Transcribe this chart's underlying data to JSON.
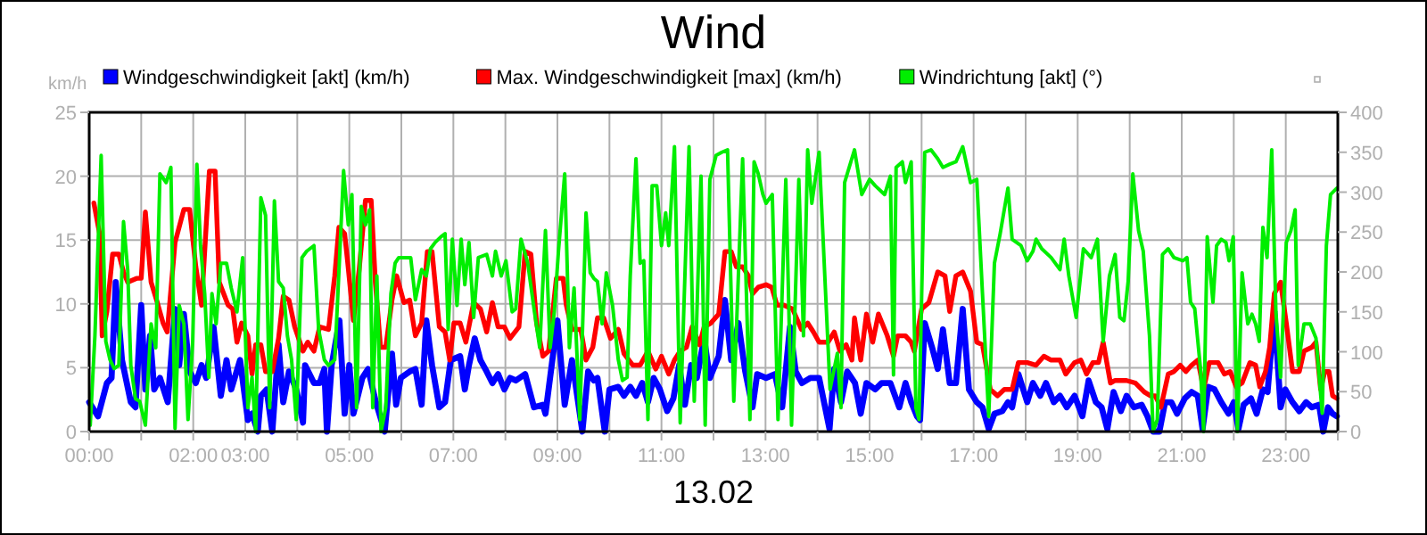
{
  "chart_data": {
    "type": "line",
    "title": "Wind",
    "xlabel": "13.02",
    "ylabel": "km/h",
    "xlim": [
      0,
      24
    ],
    "xticks": [
      {
        "value": 0,
        "label": "00:00"
      },
      {
        "value": 1,
        "label": null
      },
      {
        "value": 2,
        "label": "02:00"
      },
      {
        "value": 3,
        "label": "03:00"
      },
      {
        "value": 4,
        "label": null
      },
      {
        "value": 5,
        "label": "05:00"
      },
      {
        "value": 6,
        "label": null
      },
      {
        "value": 7,
        "label": "07:00"
      },
      {
        "value": 8,
        "label": null
      },
      {
        "value": 9,
        "label": "09:00"
      },
      {
        "value": 10,
        "label": null
      },
      {
        "value": 11,
        "label": "11:00"
      },
      {
        "value": 12,
        "label": null
      },
      {
        "value": 13,
        "label": "13:00"
      },
      {
        "value": 14,
        "label": null
      },
      {
        "value": 15,
        "label": "15:00"
      },
      {
        "value": 16,
        "label": null
      },
      {
        "value": 17,
        "label": "17:00"
      },
      {
        "value": 18,
        "label": null
      },
      {
        "value": 19,
        "label": "19:00"
      },
      {
        "value": 20,
        "label": null
      },
      {
        "value": 21,
        "label": "21:00"
      },
      {
        "value": 22,
        "label": null
      },
      {
        "value": 23,
        "label": "23:00"
      },
      {
        "value": 24,
        "label": null
      }
    ],
    "ylim": [
      0,
      25
    ],
    "yticks": [
      0,
      5,
      10,
      15,
      20,
      25
    ],
    "y2lim": [
      0,
      400
    ],
    "y2ticks": [
      0,
      50,
      100,
      150,
      200,
      250,
      300,
      350,
      400
    ],
    "grid": true,
    "legend": "top",
    "marker": "none",
    "line_style": "solid",
    "series": [
      {
        "name": "Windgeschwindigkeit [akt] (km/h)",
        "color": "#0000ff",
        "x": [
          0,
          0.17,
          0.34,
          0.43,
          0.51,
          0.63,
          0.8,
          0.89,
          1.0,
          1.08,
          1.17,
          1.25,
          1.36,
          1.51,
          1.65,
          1.73,
          1.82,
          1.93,
          2.05,
          2.16,
          2.25,
          2.39,
          2.53,
          2.64,
          2.73,
          2.9,
          3.05,
          3.13,
          3.24,
          3.3,
          3.41,
          3.52,
          3.64,
          3.73,
          3.84,
          3.98,
          4.11,
          4.15,
          4.32,
          4.43,
          4.52,
          4.57,
          4.66,
          4.81,
          4.91,
          5.0,
          5.08,
          5.25,
          5.36,
          5.51,
          5.68,
          5.82,
          5.9,
          5.99,
          6.16,
          6.27,
          6.39,
          6.48,
          6.59,
          6.73,
          6.84,
          6.95,
          7.13,
          7.22,
          7.3,
          7.41,
          7.52,
          7.64,
          7.75,
          7.86,
          7.98,
          8.09,
          8.2,
          8.38,
          8.55,
          8.72,
          8.77,
          8.89,
          9.0,
          9.14,
          9.28,
          9.48,
          9.59,
          9.7,
          9.77,
          9.91,
          10.0,
          10.17,
          10.28,
          10.4,
          10.51,
          10.63,
          10.74,
          10.85,
          10.97,
          11.11,
          11.23,
          11.34,
          11.45,
          11.57,
          11.68,
          11.82,
          11.93,
          12.1,
          12.22,
          12.34,
          12.48,
          12.61,
          12.75,
          12.84,
          13.01,
          13.18,
          13.32,
          13.47,
          13.58,
          13.7,
          13.86,
          14.03,
          14.23,
          14.32,
          14.45,
          14.57,
          14.72,
          14.83,
          14.94,
          15.11,
          15.23,
          15.4,
          15.57,
          15.69,
          15.8,
          15.91,
          15.97,
          16.06,
          16.2,
          16.31,
          16.41,
          16.54,
          16.66,
          16.79,
          16.91,
          17.06,
          17.17,
          17.29,
          17.4,
          17.55,
          17.66,
          17.74,
          17.86,
          18.03,
          18.14,
          18.28,
          18.39,
          18.54,
          18.66,
          18.79,
          18.94,
          19.09,
          19.21,
          19.35,
          19.46,
          19.57,
          19.69,
          19.83,
          19.94,
          20.08,
          20.23,
          20.34,
          20.45,
          20.57,
          20.68,
          20.8,
          20.91,
          21.06,
          21.19,
          21.31,
          21.4,
          21.51,
          21.63,
          21.76,
          21.9,
          22.0,
          22.09,
          22.19,
          22.33,
          22.44,
          22.56,
          22.65,
          22.78,
          22.9,
          22.99,
          23.13,
          23.26,
          23.39,
          23.5,
          23.64,
          23.72,
          23.81,
          23.9,
          23.98
        ],
        "values": [
          2.3,
          1.2,
          3.8,
          4.2,
          11.7,
          5.6,
          2.3,
          1.9,
          9.9,
          3.3,
          7.5,
          3.3,
          4.2,
          2.3,
          9.6,
          5.2,
          9.2,
          4.7,
          3.8,
          5.2,
          4.2,
          8.2,
          2.8,
          5.6,
          3.3,
          5.6,
          0.9,
          1.4,
          0,
          2.8,
          3.3,
          0,
          6.8,
          2.3,
          4.7,
          3.3,
          0.7,
          5.2,
          3.8,
          3.8,
          4.9,
          0,
          5.2,
          8.7,
          1.4,
          5.2,
          1.4,
          4.2,
          4.9,
          2.3,
          0,
          6.1,
          2.1,
          4.2,
          4.7,
          4.9,
          2.1,
          8.7,
          5.2,
          1.9,
          2.3,
          5.6,
          5.9,
          3.3,
          5.2,
          7.3,
          5.6,
          4.7,
          3.8,
          4.5,
          3.3,
          4.2,
          4.0,
          4.5,
          1.9,
          2.1,
          1.4,
          5.2,
          8.7,
          2.1,
          5.6,
          0,
          4.7,
          4.0,
          4.2,
          0,
          3.3,
          3.5,
          2.8,
          3.5,
          2.8,
          3.8,
          2.3,
          4.2,
          3.3,
          1.6,
          2.6,
          5.2,
          2.1,
          5.2,
          4.2,
          7.3,
          4.2,
          5.9,
          10.3,
          5.6,
          8.5,
          4.7,
          1.9,
          4.5,
          4.2,
          4.5,
          1.9,
          8.2,
          4.7,
          3.8,
          4.2,
          4.2,
          0.2,
          4.9,
          2.3,
          4.7,
          3.8,
          1.4,
          3.8,
          3.3,
          3.8,
          3.8,
          1.9,
          3.8,
          2.3,
          1.2,
          0.9,
          8.5,
          6.6,
          4.9,
          8.0,
          3.8,
          3.8,
          9.6,
          3.3,
          2.3,
          1.9,
          0.2,
          1.4,
          1.6,
          2.3,
          1.9,
          4.5,
          2.3,
          3.8,
          2.8,
          3.8,
          2.3,
          2.8,
          1.9,
          2.8,
          1.2,
          4.0,
          2.3,
          1.9,
          0.2,
          3.1,
          1.6,
          2.8,
          1.9,
          2.1,
          1.2,
          0,
          0,
          2.3,
          2.3,
          1.4,
          2.6,
          3.1,
          2.8,
          0.2,
          3.5,
          3.3,
          2.3,
          1.4,
          2.3,
          0.2,
          2.1,
          2.6,
          1.4,
          3.3,
          3.1,
          9.4,
          1.9,
          3.3,
          2.3,
          1.6,
          2.3,
          1.9,
          2.1,
          0,
          1.9,
          1.4,
          1.2
        ]
      },
      {
        "name": "Max. Windgeschwindigkeit [max] (km/h)",
        "color": "#ff0000",
        "x": [
          0.09,
          0.2,
          0.25,
          0.34,
          0.45,
          0.57,
          0.66,
          0.74,
          0.91,
          1.0,
          1.08,
          1.19,
          1.31,
          1.42,
          1.5,
          1.65,
          1.82,
          1.93,
          2.05,
          2.16,
          2.31,
          2.42,
          2.5,
          2.67,
          2.76,
          2.84,
          2.93,
          3.05,
          3.13,
          3.2,
          3.3,
          3.39,
          3.52,
          3.64,
          3.73,
          3.84,
          3.95,
          4.11,
          4.2,
          4.32,
          4.43,
          4.6,
          4.72,
          4.8,
          4.91,
          4.97,
          5.08,
          5.19,
          5.31,
          5.42,
          5.5,
          5.6,
          5.7,
          5.82,
          5.91,
          6.05,
          6.16,
          6.27,
          6.39,
          6.5,
          6.59,
          6.73,
          6.84,
          6.93,
          7.01,
          7.13,
          7.24,
          7.39,
          7.52,
          7.64,
          7.75,
          7.86,
          7.98,
          8.09,
          8.26,
          8.38,
          8.49,
          8.6,
          8.72,
          8.83,
          8.98,
          9.11,
          9.17,
          9.28,
          9.45,
          9.55,
          9.68,
          9.77,
          9.89,
          10.02,
          10.17,
          10.28,
          10.45,
          10.59,
          10.74,
          10.89,
          11.0,
          11.14,
          11.25,
          11.36,
          11.48,
          11.59,
          11.73,
          11.82,
          11.95,
          12.1,
          12.22,
          12.34,
          12.44,
          12.56,
          12.67,
          12.75,
          12.86,
          13.01,
          13.12,
          13.22,
          13.35,
          13.52,
          13.69,
          13.81,
          13.92,
          14.03,
          14.2,
          14.32,
          14.43,
          14.55,
          14.66,
          14.71,
          14.83,
          14.94,
          15.06,
          15.17,
          15.34,
          15.46,
          15.54,
          15.69,
          15.8,
          15.86,
          16.0,
          16.14,
          16.31,
          16.45,
          16.54,
          16.66,
          16.79,
          16.94,
          17.06,
          17.17,
          17.32,
          17.46,
          17.59,
          17.74,
          17.86,
          18.03,
          18.2,
          18.35,
          18.49,
          18.66,
          18.77,
          18.94,
          19.06,
          19.17,
          19.29,
          19.4,
          19.49,
          19.63,
          19.72,
          19.94,
          20.11,
          20.28,
          20.4,
          20.49,
          20.6,
          20.74,
          20.85,
          20.97,
          21.08,
          21.19,
          21.31,
          21.42,
          21.53,
          21.7,
          21.82,
          21.93,
          22.05,
          22.16,
          22.31,
          22.42,
          22.5,
          22.61,
          22.69,
          22.78,
          22.9,
          23.01,
          23.13,
          23.26,
          23.35,
          23.5,
          23.58,
          23.67,
          23.75,
          23.83,
          23.9,
          23.98
        ],
        "values": [
          17.9,
          15.5,
          7.5,
          9.4,
          13.9,
          13.9,
          12.5,
          11.7,
          12.0,
          12.0,
          17.2,
          11.7,
          10.1,
          8.5,
          7.8,
          14.8,
          17.4,
          17.4,
          12.9,
          9.9,
          20.4,
          20.4,
          11.7,
          9.9,
          9.6,
          7.0,
          8.5,
          7.5,
          4.5,
          6.8,
          6.8,
          4.7,
          4.7,
          7.3,
          10.6,
          10.3,
          8.2,
          6.3,
          7.0,
          6.3,
          8.2,
          8.0,
          12.2,
          16.0,
          15.5,
          13.2,
          8.7,
          12.7,
          18.1,
          18.1,
          11.7,
          6.6,
          6.6,
          10.3,
          12.2,
          10.1,
          10.3,
          7.5,
          8.5,
          14.1,
          14.1,
          8.2,
          7.8,
          5.6,
          8.5,
          8.5,
          7.0,
          10.1,
          9.6,
          7.8,
          10.1,
          8.2,
          8.2,
          7.3,
          8.2,
          14.1,
          13.9,
          8.5,
          5.9,
          6.3,
          12.0,
          12.0,
          9.9,
          8.0,
          8.0,
          5.6,
          6.6,
          8.9,
          8.9,
          7.3,
          8.0,
          6.1,
          5.2,
          5.2,
          6.3,
          4.9,
          5.9,
          4.5,
          5.6,
          6.3,
          6.6,
          8.2,
          6.8,
          8.2,
          8.5,
          9.2,
          14.1,
          14.1,
          12.9,
          12.9,
          12.2,
          10.8,
          11.3,
          11.5,
          11.3,
          9.9,
          9.9,
          9.6,
          8.0,
          8.5,
          7.8,
          7.0,
          7.0,
          7.8,
          6.3,
          6.8,
          5.6,
          8.9,
          5.6,
          9.2,
          7.0,
          9.2,
          7.5,
          5.9,
          7.5,
          7.5,
          7.0,
          6.3,
          9.6,
          10.1,
          12.5,
          12.2,
          9.4,
          12.2,
          12.5,
          11.0,
          7.0,
          6.8,
          3.3,
          2.8,
          3.3,
          3.3,
          5.4,
          5.4,
          5.2,
          5.9,
          5.6,
          5.6,
          4.5,
          5.4,
          5.6,
          4.5,
          5.4,
          5.4,
          7.0,
          3.8,
          4.0,
          4.0,
          3.8,
          3.1,
          2.8,
          2.8,
          1.9,
          4.5,
          4.7,
          5.2,
          4.7,
          5.2,
          5.6,
          3.3,
          5.4,
          5.4,
          4.5,
          4.7,
          3.5,
          3.8,
          5.4,
          5.2,
          3.5,
          4.7,
          6.6,
          10.8,
          11.7,
          8.5,
          4.7,
          4.7,
          6.3,
          6.6,
          7.0,
          3.3,
          4.7,
          4.7,
          2.8,
          2.6
        ]
      },
      {
        "name": "Windrichtung [akt] (°)",
        "color": "#00ee00",
        "axis": "y2",
        "x": [
          0.02,
          0.11,
          0.23,
          0.32,
          0.4,
          0.48,
          0.57,
          0.66,
          0.74,
          0.8,
          0.89,
          0.97,
          1.08,
          1.19,
          1.28,
          1.36,
          1.48,
          1.57,
          1.65,
          1.73,
          1.82,
          1.9,
          1.99,
          2.07,
          2.14,
          2.22,
          2.3,
          2.36,
          2.44,
          2.53,
          2.64,
          2.73,
          2.84,
          2.95,
          3.05,
          3.13,
          3.2,
          3.3,
          3.39,
          3.47,
          3.56,
          3.64,
          3.73,
          3.81,
          3.89,
          3.98,
          4.09,
          4.18,
          4.32,
          4.41,
          4.52,
          4.6,
          4.72,
          4.77,
          4.89,
          4.98,
          5.05,
          5.14,
          5.23,
          5.31,
          5.39,
          5.45,
          5.53,
          5.61,
          5.7,
          5.8,
          5.88,
          5.95,
          6.05,
          6.18,
          6.27,
          6.39,
          6.48,
          6.56,
          6.65,
          6.76,
          6.84,
          6.9,
          6.98,
          7.07,
          7.15,
          7.22,
          7.3,
          7.39,
          7.48,
          7.64,
          7.75,
          7.81,
          7.92,
          8.01,
          8.13,
          8.2,
          8.3,
          8.43,
          8.55,
          8.66,
          8.77,
          8.86,
          8.94,
          9.02,
          9.14,
          9.23,
          9.32,
          9.43,
          9.55,
          9.63,
          9.7,
          9.77,
          9.86,
          9.94,
          10.06,
          10.17,
          10.25,
          10.34,
          10.4,
          10.51,
          10.59,
          10.66,
          10.74,
          10.82,
          10.91,
          11.0,
          11.08,
          11.14,
          11.25,
          11.36,
          11.53,
          11.63,
          11.76,
          11.84,
          11.93,
          12.05,
          12.16,
          12.27,
          12.39,
          12.56,
          12.7,
          12.78,
          12.86,
          12.95,
          13.01,
          13.13,
          13.24,
          13.39,
          13.5,
          13.64,
          13.73,
          13.81,
          13.89,
          14.03,
          14.15,
          14.24,
          14.38,
          14.45,
          14.52,
          14.64,
          14.71,
          14.85,
          15.0,
          15.11,
          15.29,
          15.4,
          15.46,
          15.51,
          15.63,
          15.69,
          15.8,
          15.89,
          15.95,
          16.06,
          16.18,
          16.31,
          16.41,
          16.54,
          16.66,
          16.79,
          16.94,
          17.06,
          17.17,
          17.29,
          17.4,
          17.51,
          17.66,
          17.74,
          17.91,
          18.03,
          18.14,
          18.2,
          18.31,
          18.49,
          18.66,
          18.74,
          18.83,
          18.97,
          19.11,
          19.26,
          19.38,
          19.49,
          19.61,
          19.72,
          19.81,
          19.89,
          19.97,
          20.06,
          20.17,
          20.26,
          20.38,
          20.45,
          20.53,
          20.63,
          20.74,
          20.85,
          21.02,
          21.1,
          21.17,
          21.25,
          21.36,
          21.42,
          21.49,
          21.6,
          21.67,
          21.76,
          21.85,
          21.91,
          21.99,
          22.07,
          22.16,
          22.27,
          22.35,
          22.42,
          22.49,
          22.56,
          22.64,
          22.73,
          22.81,
          22.9,
          23.01,
          23.1,
          23.18,
          23.24,
          23.35,
          23.47,
          23.58,
          23.7,
          23.78,
          23.86,
          23.98
        ],
        "values": [
          8,
          120,
          346,
          113,
          90,
          79,
          83,
          263,
          203,
          83,
          41,
          38,
          8,
          135,
          105,
          323,
          312,
          331,
          4,
          158,
          135,
          15,
          113,
          335,
          233,
          173,
          68,
          173,
          135,
          211,
          211,
          180,
          150,
          218,
          30,
          68,
          0,
          293,
          271,
          30,
          289,
          188,
          180,
          120,
          90,
          15,
          218,
          226,
          233,
          128,
          90,
          83,
          90,
          158,
          327,
          259,
          297,
          30,
          282,
          259,
          278,
          30,
          195,
          0,
          30,
          173,
          211,
          218,
          218,
          218,
          165,
          203,
          195,
          229,
          237,
          244,
          248,
          128,
          241,
          158,
          241,
          184,
          237,
          143,
          218,
          222,
          195,
          226,
          195,
          214,
          150,
          154,
          241,
          211,
          154,
          105,
          252,
          105,
          150,
          226,
          323,
          105,
          180,
          15,
          274,
          199,
          192,
          188,
          135,
          199,
          158,
          90,
          64,
          68,
          195,
          342,
          211,
          214,
          15,
          308,
          308,
          233,
          274,
          233,
          357,
          11,
          357,
          38,
          320,
          8,
          316,
          346,
          350,
          353,
          38,
          342,
          15,
          338,
          323,
          297,
          286,
          297,
          15,
          316,
          8,
          316,
          120,
          353,
          286,
          350,
          180,
          53,
          98,
          30,
          312,
          338,
          353,
          297,
          316,
          308,
          297,
          320,
          71,
          331,
          338,
          312,
          338,
          30,
          15,
          350,
          353,
          342,
          331,
          335,
          338,
          357,
          312,
          316,
          173,
          19,
          211,
          248,
          305,
          241,
          233,
          214,
          226,
          241,
          229,
          218,
          203,
          241,
          195,
          143,
          229,
          218,
          241,
          113,
          195,
          222,
          143,
          139,
          188,
          323,
          252,
          226,
          120,
          0,
          15,
          222,
          229,
          218,
          214,
          218,
          162,
          154,
          79,
          0,
          244,
          162,
          233,
          241,
          237,
          214,
          244,
          0,
          199,
          135,
          147,
          135,
          113,
          256,
          218,
          353,
          150,
          68,
          237,
          252,
          278,
          83,
          135,
          135,
          117,
          23,
          233,
          297,
          305
        ]
      }
    ]
  }
}
